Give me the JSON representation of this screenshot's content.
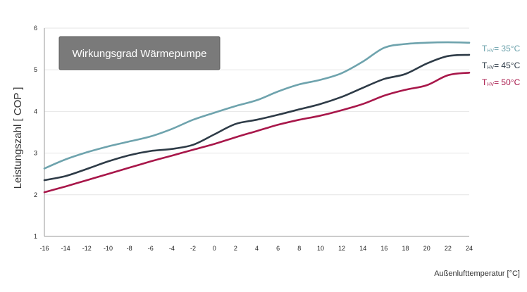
{
  "chart_data": {
    "type": "line",
    "title": "Wirkungsgrad Wärmepumpe",
    "xlabel": "Außenlufttemperatur [°C]",
    "ylabel": "Leistungszahl [ COP ]",
    "xlim": [
      -16,
      24
    ],
    "ylim": [
      1,
      6
    ],
    "x_ticks": [
      -16,
      -14,
      -12,
      -10,
      -8,
      -6,
      -4,
      -2,
      0,
      2,
      4,
      6,
      8,
      10,
      12,
      14,
      16,
      18,
      20,
      22,
      24
    ],
    "y_ticks": [
      1,
      2,
      3,
      4,
      5,
      6
    ],
    "grid": "horizontal",
    "legend_position": "right",
    "x": [
      -16,
      -14,
      -12,
      -10,
      -8,
      -6,
      -4,
      -2,
      0,
      2,
      4,
      6,
      8,
      10,
      12,
      14,
      16,
      18,
      20,
      22,
      24
    ],
    "series": [
      {
        "name": "THV = 35°C",
        "legend": {
          "prefix": "T",
          "sub": "HV",
          "suffix": "= 35°C"
        },
        "color": "#6ea3ad",
        "values": [
          2.63,
          2.85,
          3.02,
          3.16,
          3.28,
          3.4,
          3.58,
          3.8,
          3.97,
          4.13,
          4.27,
          4.48,
          4.65,
          4.76,
          4.92,
          5.2,
          5.53,
          5.62,
          5.65,
          5.66,
          5.65
        ]
      },
      {
        "name": "THV = 45°C",
        "legend": {
          "prefix": "T",
          "sub": "HV",
          "suffix": "= 45°C"
        },
        "color": "#2e3b47",
        "values": [
          2.35,
          2.45,
          2.62,
          2.8,
          2.95,
          3.05,
          3.1,
          3.2,
          3.45,
          3.7,
          3.8,
          3.92,
          4.05,
          4.18,
          4.35,
          4.57,
          4.78,
          4.9,
          5.15,
          5.33,
          5.36
        ]
      },
      {
        "name": "THV = 50°C",
        "legend": {
          "prefix": "T",
          "sub": "HV",
          "suffix": "= 50°C"
        },
        "color": "#a8174a",
        "values": [
          2.06,
          2.2,
          2.35,
          2.5,
          2.65,
          2.8,
          2.94,
          3.08,
          3.22,
          3.38,
          3.53,
          3.68,
          3.8,
          3.9,
          4.03,
          4.18,
          4.38,
          4.52,
          4.63,
          4.87,
          4.93
        ]
      }
    ]
  }
}
